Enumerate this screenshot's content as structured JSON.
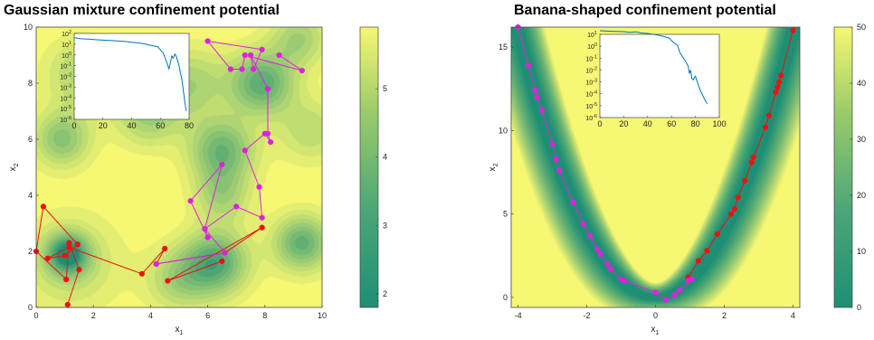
{
  "chart_data": [
    {
      "type": "contour",
      "title": "Gaussian mixture confinement potential",
      "xlabel": "x1",
      "ylabel": "x2",
      "xlim": [
        0,
        10
      ],
      "ylim": [
        0,
        10
      ],
      "xticks": [
        "0",
        "2",
        "4",
        "6",
        "8",
        "10"
      ],
      "yticks": [
        "0",
        "2",
        "4",
        "6",
        "8",
        "10"
      ],
      "colorbar": {
        "range": [
          1.8,
          5.9
        ],
        "ticks": [
          "2",
          "3",
          "4",
          "5"
        ],
        "colormap": "green-to-yellow"
      },
      "colors": {
        "low": "#1e8f74",
        "high": "#f6f772",
        "background": "#f6f772"
      },
      "wells": [
        {
          "x": 1.1,
          "y": 1.9,
          "sigma": 0.5,
          "depth": 3.4
        },
        {
          "x": 1.2,
          "y": 1.6,
          "sigma": 1.2,
          "depth": 1.3
        },
        {
          "x": 0.9,
          "y": 6.0,
          "sigma": 0.7,
          "depth": 2.2
        },
        {
          "x": 3.9,
          "y": 6.9,
          "sigma": 0.8,
          "depth": 1.8
        },
        {
          "x": 1.6,
          "y": 8.3,
          "sigma": 0.9,
          "depth": 1.5
        },
        {
          "x": 5.4,
          "y": 8.0,
          "sigma": 0.9,
          "depth": 1.6
        },
        {
          "x": 7.9,
          "y": 8.0,
          "sigma": 0.8,
          "depth": 3.0
        },
        {
          "x": 6.5,
          "y": 5.6,
          "sigma": 0.8,
          "depth": 2.7
        },
        {
          "x": 6.5,
          "y": 4.0,
          "sigma": 0.7,
          "depth": 1.6
        },
        {
          "x": 6.3,
          "y": 1.6,
          "sigma": 0.8,
          "depth": 3.1
        },
        {
          "x": 5.0,
          "y": 1.0,
          "sigma": 0.8,
          "depth": 1.6
        },
        {
          "x": 9.3,
          "y": 2.3,
          "sigma": 0.7,
          "depth": 2.9
        },
        {
          "x": 9.2,
          "y": 9.6,
          "sigma": 0.7,
          "depth": 1.7
        },
        {
          "x": 9.6,
          "y": 6.3,
          "sigma": 0.8,
          "depth": 1.3
        }
      ],
      "series": [
        {
          "color": "#ee1111",
          "points": [
            [
              1.1,
              0.1
            ],
            [
              1.5,
              1.35
            ],
            [
              1.15,
              2.3
            ],
            [
              1.05,
              1.0
            ],
            [
              0.0,
              2.0
            ],
            [
              0.25,
              3.6
            ],
            [
              1.45,
              2.25
            ],
            [
              1.0,
              1.85
            ],
            [
              0.4,
              1.75
            ],
            [
              1.15,
              2.15
            ],
            [
              3.7,
              1.2
            ],
            [
              4.5,
              2.1
            ],
            [
              4.2,
              1.55
            ],
            [
              6.6,
              1.95
            ],
            [
              7.9,
              2.85
            ],
            [
              4.6,
              0.95
            ],
            [
              6.5,
              1.65
            ]
          ]
        },
        {
          "color": "#dd22dd",
          "points": [
            [
              4.2,
              1.55
            ],
            [
              6.6,
              1.95
            ],
            [
              5.9,
              2.8
            ],
            [
              6.0,
              2.5
            ],
            [
              5.4,
              3.8
            ],
            [
              6.5,
              5.1
            ],
            [
              5.9,
              2.8
            ],
            [
              7.0,
              3.6
            ],
            [
              7.9,
              3.2
            ],
            [
              7.8,
              4.3
            ],
            [
              7.3,
              5.6
            ],
            [
              8.0,
              6.2
            ],
            [
              8.2,
              5.9
            ],
            [
              8.1,
              6.2
            ],
            [
              8.1,
              7.8
            ],
            [
              7.5,
              9.0
            ],
            [
              7.6,
              8.5
            ],
            [
              7.9,
              9.2
            ],
            [
              6.0,
              9.5
            ],
            [
              6.8,
              8.5
            ],
            [
              7.2,
              8.5
            ],
            [
              7.3,
              9.0
            ],
            [
              9.3,
              8.45
            ],
            [
              8.5,
              9.0
            ]
          ]
        }
      ],
      "inset": {
        "type": "line",
        "xlim": [
          0,
          80
        ],
        "xticks": [
          "0",
          "20",
          "40",
          "60",
          "80"
        ],
        "yscale": "log",
        "yticks": [
          "10^-6",
          "10^-5",
          "10^-4",
          "10^-3",
          "10^-2",
          "10^-1",
          "10^0",
          "10^1",
          "10^2"
        ],
        "color": "#0072bd",
        "points": [
          [
            0,
            40
          ],
          [
            5,
            32
          ],
          [
            10,
            30
          ],
          [
            15,
            26
          ],
          [
            20,
            24
          ],
          [
            25,
            22
          ],
          [
            30,
            20
          ],
          [
            35,
            18
          ],
          [
            40,
            15
          ],
          [
            45,
            13
          ],
          [
            50,
            10
          ],
          [
            55,
            7
          ],
          [
            58,
            6
          ],
          [
            60,
            3
          ],
          [
            62,
            1.5
          ],
          [
            64,
            0.3
          ],
          [
            66,
            0.05
          ],
          [
            67,
            0.2
          ],
          [
            68,
            0.8
          ],
          [
            69,
            0.5
          ],
          [
            70,
            1.2
          ],
          [
            71,
            0.8
          ],
          [
            72,
            0.3
          ],
          [
            73,
            0.1
          ],
          [
            74,
            0.02
          ],
          [
            75,
            0.005
          ],
          [
            76,
            0.0005
          ],
          [
            77,
            5e-05
          ],
          [
            78,
            6e-06
          ]
        ]
      }
    },
    {
      "type": "contour",
      "title": "Banana-shaped confinement potential",
      "xlabel": "x1",
      "ylabel": "x2",
      "xlim": [
        -4.2,
        4.2
      ],
      "ylim": [
        -0.6,
        16.2
      ],
      "xticks": [
        "-4",
        "-2",
        "0",
        "2",
        "4"
      ],
      "yticks": [
        "0",
        "5",
        "10",
        "15"
      ],
      "colorbar": {
        "range": [
          0,
          50
        ],
        "ticks": [
          "0",
          "10",
          "20",
          "30",
          "40",
          "50"
        ],
        "colormap": "green-to-yellow"
      },
      "colors": {
        "low": "#1e8f74",
        "high": "#f6f772",
        "background": "#f6f772"
      },
      "curve": "x2 = x1^2",
      "series": [
        {
          "color": "#ee1111",
          "points": [
            [
              4.0,
              16.0
            ],
            [
              3.65,
              13.3
            ],
            [
              3.6,
              12.9
            ],
            [
              3.55,
              12.6
            ],
            [
              3.5,
              12.3
            ],
            [
              3.3,
              10.9
            ],
            [
              3.2,
              10.2
            ],
            [
              2.85,
              8.4
            ],
            [
              2.8,
              8.1
            ],
            [
              2.6,
              7.0
            ],
            [
              2.4,
              6.0
            ],
            [
              2.3,
              5.3
            ],
            [
              2.2,
              5.0
            ],
            [
              1.8,
              3.8
            ],
            [
              1.5,
              2.8
            ],
            [
              1.25,
              2.2
            ],
            [
              0.95,
              1.2
            ]
          ]
        },
        {
          "color": "#dd22dd",
          "points": [
            [
              -4.0,
              16.2
            ],
            [
              -3.7,
              13.9
            ],
            [
              -3.5,
              12.4
            ],
            [
              -3.45,
              12.0
            ],
            [
              -3.3,
              11.2
            ],
            [
              -3.0,
              9.2
            ],
            [
              -2.9,
              8.3
            ],
            [
              -2.8,
              7.6
            ],
            [
              -2.4,
              5.7
            ],
            [
              -2.1,
              4.4
            ],
            [
              -1.9,
              3.7
            ],
            [
              -1.7,
              2.9
            ],
            [
              -1.6,
              2.6
            ],
            [
              -1.4,
              2.0
            ],
            [
              -1.3,
              1.7
            ],
            [
              -1.0,
              1.1
            ],
            [
              -0.9,
              1.0
            ],
            [
              0.0,
              0.3
            ],
            [
              0.3,
              -0.15
            ],
            [
              0.55,
              0.15
            ],
            [
              0.7,
              0.45
            ],
            [
              1.05,
              1.1
            ],
            [
              0.95,
              1.0
            ]
          ]
        }
      ],
      "inset": {
        "type": "line",
        "xlim": [
          0,
          100
        ],
        "xticks": [
          "0",
          "20",
          "40",
          "60",
          "80",
          "100"
        ],
        "yscale": "log",
        "yticks": [
          "10^-6",
          "10^-5",
          "10^-4",
          "10^-3",
          "10^-2",
          "10^-1",
          "10^0",
          "10^1"
        ],
        "color": "#0072bd",
        "points": [
          [
            0,
            20
          ],
          [
            10,
            18
          ],
          [
            20,
            17
          ],
          [
            25,
            15
          ],
          [
            30,
            16
          ],
          [
            35,
            13
          ],
          [
            40,
            12
          ],
          [
            45,
            10
          ],
          [
            50,
            8
          ],
          [
            55,
            6
          ],
          [
            58,
            5
          ],
          [
            60,
            3
          ],
          [
            62,
            2
          ],
          [
            65,
            1.2
          ],
          [
            67,
            0.3
          ],
          [
            70,
            0.1
          ],
          [
            72,
            0.05
          ],
          [
            74,
            0.02
          ],
          [
            75,
            0.005
          ],
          [
            76,
            0.01
          ],
          [
            77,
            0.002
          ],
          [
            78,
            0.0015
          ],
          [
            80,
            0.003
          ],
          [
            82,
            0.0008
          ],
          [
            84,
            0.0002
          ],
          [
            86,
            8e-05
          ],
          [
            88,
            3e-05
          ],
          [
            89,
            2e-05
          ],
          [
            90,
            1.5e-05
          ]
        ]
      }
    }
  ]
}
